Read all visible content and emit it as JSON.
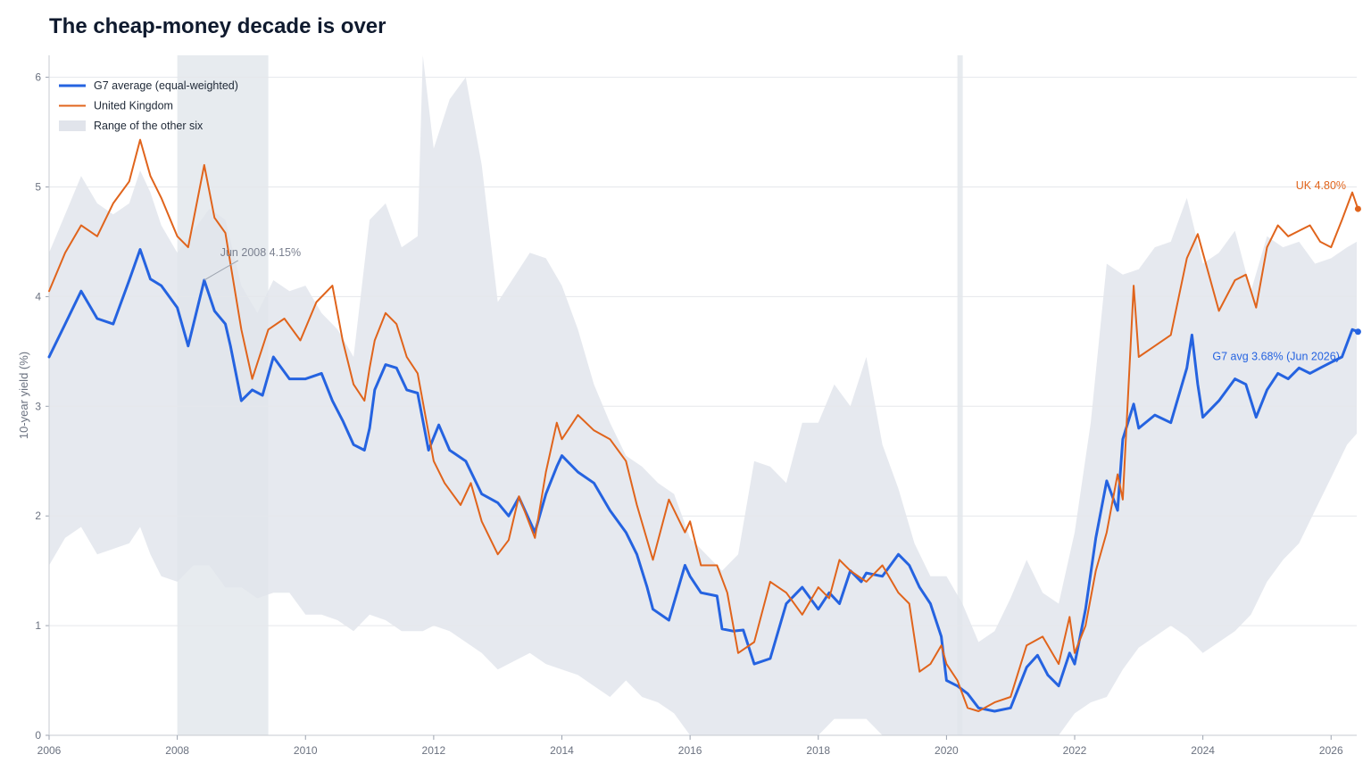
{
  "chart_data": {
    "type": "line",
    "title": "The cheap-money decade is over",
    "ylabel": "10-year yield (%)",
    "xlabel": "",
    "xlim": [
      2006,
      2026.4
    ],
    "ylim": [
      0,
      6.2
    ],
    "xticks": [
      2006,
      2008,
      2010,
      2012,
      2014,
      2016,
      2018,
      2020,
      2022,
      2024,
      2026
    ],
    "yticks": [
      0,
      1,
      2,
      3,
      4,
      5,
      6
    ],
    "grid": true,
    "legend_position": "top-left",
    "shaded_periods": [
      [
        2008.0,
        2009.42
      ],
      [
        2020.17,
        2020.25
      ]
    ],
    "colors": {
      "g7": "#2563e0",
      "uk": "#e0641c",
      "range": "#e1e4eb",
      "shade": "#e3e7ec"
    },
    "legend": [
      {
        "label": "G7 average (equal-weighted)",
        "kind": "line",
        "series": "g7"
      },
      {
        "label": "United Kingdom",
        "kind": "line",
        "series": "uk"
      },
      {
        "label": "Range of the other six",
        "kind": "band",
        "series": "range"
      }
    ],
    "series": [
      {
        "name": "G7 average (equal-weighted)",
        "key": "g7",
        "x": [
          2006,
          2006.25,
          2006.5,
          2006.75,
          2007,
          2007.25,
          2007.42,
          2007.58,
          2007.75,
          2008,
          2008.17,
          2008.42,
          2008.58,
          2008.75,
          2008.83,
          2009,
          2009.17,
          2009.33,
          2009.5,
          2009.75,
          2010,
          2010.25,
          2010.42,
          2010.58,
          2010.75,
          2010.92,
          2011,
          2011.08,
          2011.25,
          2011.42,
          2011.58,
          2011.75,
          2011.92,
          2012.08,
          2012.25,
          2012.5,
          2012.75,
          2013,
          2013.17,
          2013.33,
          2013.58,
          2013.75,
          2013.92,
          2014,
          2014.25,
          2014.5,
          2014.75,
          2015,
          2015.17,
          2015.33,
          2015.42,
          2015.67,
          2015.92,
          2016,
          2016.17,
          2016.42,
          2016.5,
          2016.67,
          2016.83,
          2017,
          2017.25,
          2017.5,
          2017.75,
          2018,
          2018.17,
          2018.33,
          2018.5,
          2018.67,
          2018.75,
          2019,
          2019.25,
          2019.42,
          2019.58,
          2019.75,
          2019.92,
          2020,
          2020.17,
          2020.33,
          2020.5,
          2020.75,
          2021,
          2021.25,
          2021.42,
          2021.58,
          2021.75,
          2021.92,
          2022,
          2022.17,
          2022.33,
          2022.5,
          2022.67,
          2022.75,
          2022.92,
          2023,
          2023.25,
          2023.5,
          2023.75,
          2023.83,
          2023.92,
          2024,
          2024.25,
          2024.5,
          2024.67,
          2024.83,
          2025,
          2025.17,
          2025.33,
          2025.5,
          2025.67,
          2025.83,
          2026,
          2026.17,
          2026.33,
          2026.42
        ],
        "values": [
          3.45,
          3.75,
          4.05,
          3.8,
          3.75,
          4.15,
          4.43,
          4.16,
          4.1,
          3.9,
          3.55,
          4.15,
          3.87,
          3.75,
          3.55,
          3.05,
          3.15,
          3.1,
          3.45,
          3.25,
          3.25,
          3.3,
          3.05,
          2.87,
          2.65,
          2.6,
          2.8,
          3.15,
          3.38,
          3.35,
          3.15,
          3.12,
          2.6,
          2.83,
          2.6,
          2.5,
          2.2,
          2.12,
          2.0,
          2.17,
          1.85,
          2.2,
          2.45,
          2.55,
          2.4,
          2.3,
          2.05,
          1.85,
          1.65,
          1.35,
          1.15,
          1.05,
          1.55,
          1.45,
          1.3,
          1.27,
          0.97,
          0.95,
          0.96,
          0.65,
          0.7,
          1.2,
          1.35,
          1.15,
          1.3,
          1.2,
          1.5,
          1.4,
          1.48,
          1.45,
          1.65,
          1.55,
          1.35,
          1.2,
          0.9,
          0.5,
          0.45,
          0.38,
          0.25,
          0.22,
          0.25,
          0.62,
          0.73,
          0.55,
          0.45,
          0.75,
          0.65,
          1.15,
          1.8,
          2.32,
          2.05,
          2.7,
          3.02,
          2.8,
          2.92,
          2.85,
          3.35,
          3.65,
          3.2,
          2.9,
          3.05,
          3.25,
          3.2,
          2.9,
          3.15,
          3.3,
          3.25,
          3.35,
          3.3,
          3.35,
          3.4,
          3.45,
          3.7,
          3.68
        ]
      },
      {
        "name": "United Kingdom",
        "key": "uk",
        "x": [
          2006,
          2006.25,
          2006.5,
          2006.75,
          2007,
          2007.25,
          2007.42,
          2007.58,
          2007.75,
          2008,
          2008.17,
          2008.42,
          2008.58,
          2008.75,
          2009,
          2009.17,
          2009.42,
          2009.67,
          2009.92,
          2010.17,
          2010.42,
          2010.58,
          2010.75,
          2010.92,
          2011,
          2011.08,
          2011.25,
          2011.42,
          2011.58,
          2011.75,
          2012,
          2012.17,
          2012.42,
          2012.58,
          2012.75,
          2013,
          2013.17,
          2013.33,
          2013.58,
          2013.75,
          2013.92,
          2014,
          2014.25,
          2014.5,
          2014.75,
          2015,
          2015.17,
          2015.42,
          2015.67,
          2015.92,
          2016,
          2016.17,
          2016.42,
          2016.58,
          2016.75,
          2017,
          2017.25,
          2017.5,
          2017.75,
          2018,
          2018.17,
          2018.33,
          2018.5,
          2018.75,
          2019,
          2019.25,
          2019.42,
          2019.58,
          2019.75,
          2019.92,
          2020,
          2020.17,
          2020.33,
          2020.5,
          2020.75,
          2021,
          2021.25,
          2021.5,
          2021.75,
          2021.92,
          2022,
          2022.17,
          2022.33,
          2022.5,
          2022.67,
          2022.75,
          2022.92,
          2023,
          2023.25,
          2023.5,
          2023.75,
          2023.92,
          2024,
          2024.25,
          2024.5,
          2024.67,
          2024.83,
          2025,
          2025.17,
          2025.33,
          2025.5,
          2025.67,
          2025.83,
          2026,
          2026.17,
          2026.33,
          2026.42
        ],
        "values": [
          4.05,
          4.4,
          4.65,
          4.55,
          4.85,
          5.05,
          5.43,
          5.1,
          4.9,
          4.55,
          4.45,
          5.2,
          4.72,
          4.58,
          3.7,
          3.25,
          3.7,
          3.8,
          3.6,
          3.95,
          4.1,
          3.6,
          3.2,
          3.05,
          3.35,
          3.6,
          3.85,
          3.75,
          3.45,
          3.3,
          2.5,
          2.3,
          2.1,
          2.3,
          1.95,
          1.65,
          1.78,
          2.18,
          1.8,
          2.4,
          2.85,
          2.7,
          2.92,
          2.78,
          2.7,
          2.5,
          2.1,
          1.6,
          2.15,
          1.85,
          1.95,
          1.55,
          1.55,
          1.3,
          0.75,
          0.85,
          1.4,
          1.3,
          1.1,
          1.35,
          1.25,
          1.6,
          1.5,
          1.4,
          1.55,
          1.3,
          1.2,
          0.58,
          0.65,
          0.82,
          0.65,
          0.5,
          0.25,
          0.22,
          0.3,
          0.35,
          0.82,
          0.9,
          0.65,
          1.08,
          0.75,
          1.0,
          1.5,
          1.85,
          2.38,
          2.15,
          4.1,
          3.45,
          3.55,
          3.65,
          4.35,
          4.57,
          4.4,
          3.87,
          4.15,
          4.2,
          3.9,
          4.45,
          4.65,
          4.55,
          4.6,
          4.65,
          4.5,
          4.45,
          4.7,
          4.95,
          4.8
        ]
      }
    ],
    "range_band": {
      "name": "Range of the other six",
      "key": "range",
      "x": [
        2006,
        2006.25,
        2006.5,
        2006.75,
        2007,
        2007.25,
        2007.42,
        2007.58,
        2007.75,
        2008,
        2008.25,
        2008.5,
        2008.75,
        2009,
        2009.25,
        2009.5,
        2009.75,
        2010,
        2010.25,
        2010.5,
        2010.75,
        2011,
        2011.25,
        2011.5,
        2011.75,
        2011.83,
        2012,
        2012.25,
        2012.5,
        2012.75,
        2013,
        2013.5,
        2013.75,
        2014,
        2014.25,
        2014.5,
        2014.75,
        2015,
        2015.25,
        2015.5,
        2015.75,
        2016,
        2016.5,
        2016.75,
        2017,
        2017.25,
        2017.5,
        2017.75,
        2018,
        2018.25,
        2018.5,
        2018.75,
        2019,
        2019.25,
        2019.5,
        2019.75,
        2020,
        2020.25,
        2020.5,
        2020.75,
        2021,
        2021.25,
        2021.5,
        2021.75,
        2022,
        2022.25,
        2022.5,
        2022.75,
        2023,
        2023.25,
        2023.5,
        2023.75,
        2024,
        2024.25,
        2024.5,
        2024.75,
        2025,
        2025.25,
        2025.5,
        2025.75,
        2026,
        2026.25,
        2026.4
      ],
      "upper": [
        4.4,
        4.75,
        5.1,
        4.85,
        4.75,
        4.85,
        5.15,
        4.95,
        4.65,
        4.4,
        4.6,
        4.8,
        4.7,
        4.1,
        3.85,
        4.15,
        4.05,
        4.1,
        3.85,
        3.7,
        3.45,
        4.7,
        4.85,
        4.45,
        4.55,
        6.2,
        5.35,
        5.8,
        6.0,
        5.2,
        3.95,
        4.4,
        4.35,
        4.1,
        3.7,
        3.2,
        2.85,
        2.55,
        2.45,
        2.3,
        2.2,
        1.8,
        1.5,
        1.65,
        2.5,
        2.45,
        2.3,
        2.85,
        2.85,
        3.2,
        3.0,
        3.45,
        2.65,
        2.25,
        1.75,
        1.45,
        1.45,
        1.2,
        0.85,
        0.95,
        1.25,
        1.6,
        1.3,
        1.2,
        1.85,
        2.85,
        4.3,
        4.2,
        4.25,
        4.45,
        4.5,
        4.9,
        4.3,
        4.4,
        4.6,
        4.05,
        4.55,
        4.45,
        4.5,
        4.3,
        4.35,
        4.45,
        4.5
      ],
      "lower": [
        1.55,
        1.8,
        1.9,
        1.65,
        1.7,
        1.75,
        1.9,
        1.65,
        1.45,
        1.4,
        1.55,
        1.55,
        1.35,
        1.35,
        1.25,
        1.3,
        1.3,
        1.1,
        1.1,
        1.05,
        0.95,
        1.1,
        1.05,
        0.95,
        0.95,
        0.95,
        1.0,
        0.95,
        0.85,
        0.75,
        0.6,
        0.75,
        0.65,
        0.6,
        0.55,
        0.45,
        0.35,
        0.5,
        0.35,
        0.3,
        0.2,
        0.0,
        0.0,
        0.0,
        0.0,
        0.0,
        0.0,
        0.0,
        0.0,
        0.15,
        0.15,
        0.15,
        0.0,
        0.0,
        0.0,
        0.0,
        0.0,
        0.0,
        0.0,
        0.0,
        0.0,
        0.0,
        0.0,
        0.0,
        0.2,
        0.3,
        0.35,
        0.6,
        0.8,
        0.9,
        1.0,
        0.9,
        0.75,
        0.85,
        0.95,
        1.1,
        1.4,
        1.6,
        1.75,
        2.05,
        2.35,
        2.65,
        2.75
      ]
    },
    "annotations": [
      {
        "text": "Jun 2008  4.15%",
        "series": "g7",
        "x": 2008.42,
        "y": 4.15,
        "label_x": 2008.67,
        "label_y": 4.37,
        "color": "#7b8190"
      },
      {
        "text": "UK  4.80%",
        "series": "uk",
        "x": 2026.42,
        "y": 4.8,
        "label_x": 2025.45,
        "label_y": 4.98,
        "color": "#e0641c"
      },
      {
        "text": "G7 avg  3.68%  (Jun 2026)",
        "series": "g7",
        "x": 2026.42,
        "y": 3.68,
        "label_x": 2024.15,
        "label_y": 3.42,
        "color": "#2563e0"
      }
    ]
  }
}
